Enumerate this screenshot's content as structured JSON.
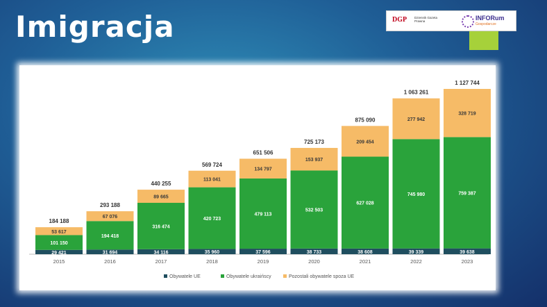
{
  "slide": {
    "title": "Imigracja",
    "logo_left": "DGP",
    "logo_left_sub": "Dziennik Gazeta Prawna",
    "logo_right": "INFORum",
    "logo_right_sub": "Gospodarcze"
  },
  "colors": {
    "eu": "#1f4e5f",
    "ukraine": "#2aa33b",
    "other": "#f6bb67"
  },
  "chart_data": {
    "type": "bar",
    "stacked": true,
    "categories": [
      "2015",
      "2016",
      "2017",
      "2018",
      "2019",
      "2020",
      "2021",
      "2022",
      "2023"
    ],
    "series": [
      {
        "name": "Obywatele UE",
        "values": [
          29421,
          31694,
          34116,
          35960,
          37596,
          38733,
          38608,
          39339,
          39638
        ]
      },
      {
        "name": "Obywatele ukraińscy",
        "values": [
          101150,
          194418,
          316474,
          420723,
          479113,
          532503,
          627028,
          745980,
          759387
        ]
      },
      {
        "name": "Pozostali obywatele spoza UE",
        "values": [
          53617,
          67076,
          89665,
          113041,
          134797,
          153937,
          209454,
          277942,
          328719
        ]
      }
    ],
    "segment_labels": [
      [
        "29 421",
        "31 694",
        "34 116",
        "35 960",
        "37 596",
        "38 733",
        "38 608",
        "39 339",
        "39 638"
      ],
      [
        "101 150",
        "194 418",
        "316 474",
        "420 723",
        "479 113",
        "532 503",
        "627 028",
        "745 980",
        "759 387"
      ],
      [
        "53 617",
        "67 076",
        "89 665",
        "113 041",
        "134 797",
        "153 937",
        "209 454",
        "277 942",
        "328 719"
      ]
    ],
    "totals": [
      "184 188",
      "293 188",
      "440 255",
      "569 724",
      "651 506",
      "725 173",
      "875 090",
      "1 063 261",
      "1 127 744"
    ],
    "total_values": [
      184188,
      293188,
      440255,
      569724,
      651506,
      725173,
      875090,
      1063261,
      1127744
    ],
    "legend_position": "bottom",
    "grid": false
  }
}
